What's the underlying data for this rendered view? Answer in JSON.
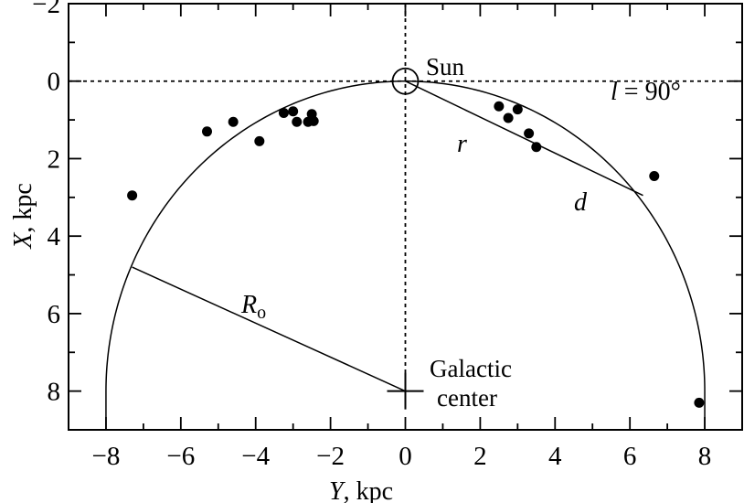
{
  "chart_data": {
    "type": "scatter",
    "xlabel": "Y, kpc",
    "xlabel_italic": "Y",
    "xlabel_rest": ", kpc",
    "ylabel": "X, kpc",
    "ylabel_italic": "X",
    "ylabel_rest": ", kpc",
    "xlim": [
      -9,
      9
    ],
    "ylim": [
      9,
      -2
    ],
    "y_axis_inverted": true,
    "x_ticks": [
      {
        "value": -8,
        "label": "−8"
      },
      {
        "value": -6,
        "label": "−6"
      },
      {
        "value": -4,
        "label": "−4"
      },
      {
        "value": -2,
        "label": "−2"
      },
      {
        "value": 0,
        "label": "0"
      },
      {
        "value": 2,
        "label": "2"
      },
      {
        "value": 4,
        "label": "4"
      },
      {
        "value": 6,
        "label": "6"
      },
      {
        "value": 8,
        "label": "8"
      }
    ],
    "y_ticks": [
      {
        "value": -2,
        "label": "−2"
      },
      {
        "value": 0,
        "label": "0"
      },
      {
        "value": 2,
        "label": "2"
      },
      {
        "value": 4,
        "label": "4"
      },
      {
        "value": 6,
        "label": "6"
      },
      {
        "value": 8,
        "label": "8"
      }
    ],
    "points": [
      {
        "x": -7.3,
        "y": 2.95
      },
      {
        "x": -5.3,
        "y": 1.3
      },
      {
        "x": -4.6,
        "y": 1.05
      },
      {
        "x": -3.9,
        "y": 1.55
      },
      {
        "x": -3.25,
        "y": 0.82
      },
      {
        "x": -3.0,
        "y": 0.78
      },
      {
        "x": -2.9,
        "y": 1.05
      },
      {
        "x": -2.6,
        "y": 1.05
      },
      {
        "x": -2.5,
        "y": 0.85
      },
      {
        "x": -2.45,
        "y": 1.03
      },
      {
        "x": 2.5,
        "y": 0.65
      },
      {
        "x": 2.75,
        "y": 0.95
      },
      {
        "x": 3.0,
        "y": 0.73
      },
      {
        "x": 3.3,
        "y": 1.35
      },
      {
        "x": 3.5,
        "y": 1.7
      },
      {
        "x": 6.65,
        "y": 2.45
      },
      {
        "x": 7.85,
        "y": 8.3
      }
    ],
    "circle": {
      "center": [
        0,
        8
      ],
      "radius": 8
    },
    "sun": {
      "position": [
        0,
        0
      ],
      "label": "Sun"
    },
    "galactic_center": {
      "position": [
        0,
        8
      ],
      "label_line1": "Galactic",
      "label_line2": "center"
    },
    "line_r_d": {
      "from": [
        0,
        0
      ],
      "to": [
        6.35,
        2.95
      ]
    },
    "line_R0": {
      "from": [
        -7.3,
        4.8
      ],
      "to": [
        0,
        8
      ]
    },
    "labels": {
      "r": "r",
      "d": "d",
      "R0_main": "R",
      "R0_sub": "o",
      "l_label_italic": "l",
      "l_label_rest": " = 90°"
    }
  }
}
